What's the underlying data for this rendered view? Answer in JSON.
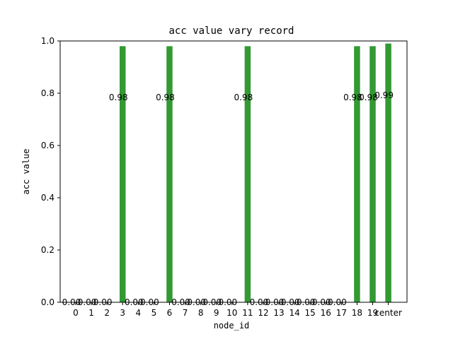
{
  "chart_data": {
    "type": "bar",
    "title": "acc value vary record",
    "xlabel": "node_id",
    "ylabel": "acc value",
    "ylim": [
      0,
      1.0
    ],
    "yticks": [
      "0.0",
      "0.2",
      "0.4",
      "0.6",
      "0.8",
      "1.0"
    ],
    "categories": [
      "0",
      "1",
      "2",
      "3",
      "4",
      "5",
      "6",
      "7",
      "8",
      "9",
      "10",
      "11",
      "12",
      "13",
      "14",
      "15",
      "16",
      "17",
      "18",
      "19",
      "center"
    ],
    "values": [
      0.0,
      0.0,
      0.0,
      0.98,
      0.0,
      0.0,
      0.98,
      0.0,
      0.0,
      0.0,
      0.0,
      0.98,
      0.0,
      0.0,
      0.0,
      0.0,
      0.0,
      0.0,
      0.98,
      0.98,
      0.99
    ],
    "data_labels": [
      "0.00",
      "0.00",
      "0.00",
      "0.98",
      "0.00",
      "0.00",
      "0.98",
      "0.00",
      "0.00",
      "0.00",
      "0.00",
      "0.98",
      "0.00",
      "0.00",
      "0.00",
      "0.00",
      "0.00",
      "0.00",
      "0.98",
      "0.98",
      "0.99"
    ],
    "bar_color": "#339933",
    "grid": false,
    "legend": "none"
  }
}
